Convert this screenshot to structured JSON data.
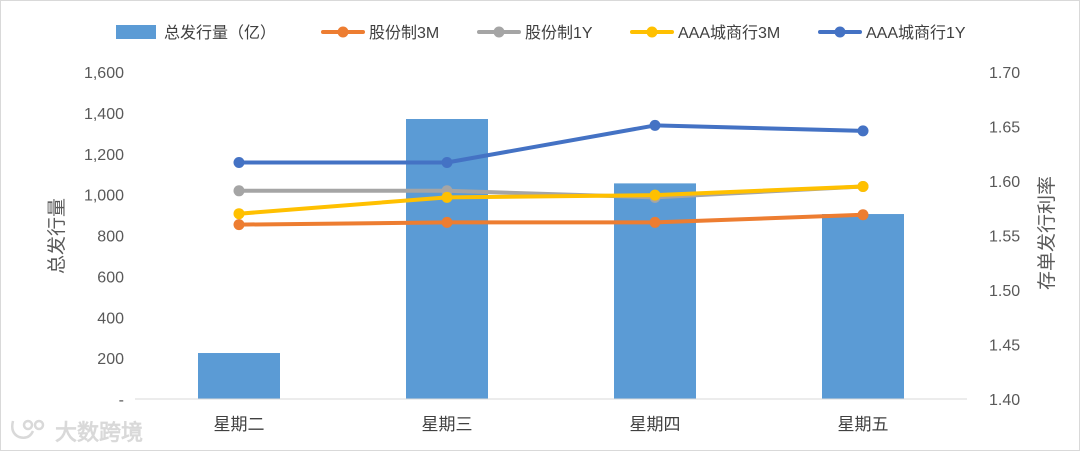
{
  "watermark": "大数跨境",
  "chart_data": {
    "type": "bar",
    "categories": [
      "星期二",
      "星期三",
      "星期四",
      "星期五"
    ],
    "bar_series": {
      "name": "总发行量（亿）",
      "values": [
        225,
        1370,
        1055,
        905
      ],
      "color": "#5b9bd5"
    },
    "line_series": [
      {
        "name": "股份制3M",
        "values": [
          1.56,
          1.562,
          1.562,
          1.569
        ],
        "color": "#ed7d31"
      },
      {
        "name": "股份制1Y",
        "values": [
          1.591,
          1.591,
          1.585,
          1.595
        ],
        "color": "#a5a5a5"
      },
      {
        "name": "AAA城商行3M",
        "values": [
          1.57,
          1.585,
          1.587,
          1.595
        ],
        "color": "#ffc000"
      },
      {
        "name": "AAA城商行1Y",
        "values": [
          1.617,
          1.617,
          1.651,
          1.646
        ],
        "color": "#4472c4"
      }
    ],
    "ylabel": "总发行量",
    "y2label": "存单发行利率",
    "ylim": [
      0,
      1600
    ],
    "y2lim": [
      1.4,
      1.7
    ],
    "yticks": [
      "-",
      "200",
      "400",
      "600",
      "800",
      "1,000",
      "1,200",
      "1,400",
      "1,600"
    ],
    "y2ticks": [
      "1.40",
      "1.45",
      "1.50",
      "1.55",
      "1.60",
      "1.65",
      "1.70"
    ],
    "legend_position": "top",
    "grid": false
  }
}
